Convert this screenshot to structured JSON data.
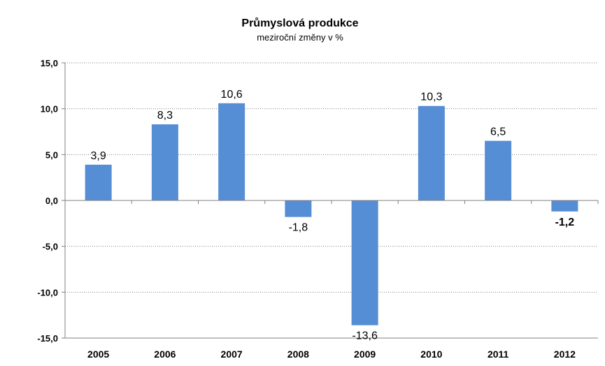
{
  "chart_data": {
    "type": "bar",
    "title": "Průmyslová produkce",
    "subtitle": "meziroční změny v %",
    "xlabel": "",
    "ylabel": "",
    "categories": [
      "2005",
      "2006",
      "2007",
      "2008",
      "2009",
      "2010",
      "2011",
      "2012"
    ],
    "values": [
      3.9,
      8.3,
      10.6,
      -1.8,
      -13.6,
      10.3,
      6.5,
      -1.2
    ],
    "data_labels": [
      "3,9",
      "8,3",
      "10,6",
      "-1,8",
      "-13,6",
      "10,3",
      "6,5",
      "-1,2"
    ],
    "bold_labels": [
      false,
      false,
      false,
      false,
      false,
      false,
      false,
      true
    ],
    "ylim": [
      -15,
      15
    ],
    "yticks": [
      15,
      10,
      5,
      0,
      -5,
      -10,
      -15
    ],
    "ytick_labels": [
      "15,0",
      "10,0",
      "5,0",
      "0,0",
      "-5,0",
      "-10,0",
      "-15,0"
    ],
    "grid": true,
    "legend": "none",
    "colors": {
      "bar": "#558ED5",
      "axis": "#808080",
      "grid": "#808080"
    }
  }
}
